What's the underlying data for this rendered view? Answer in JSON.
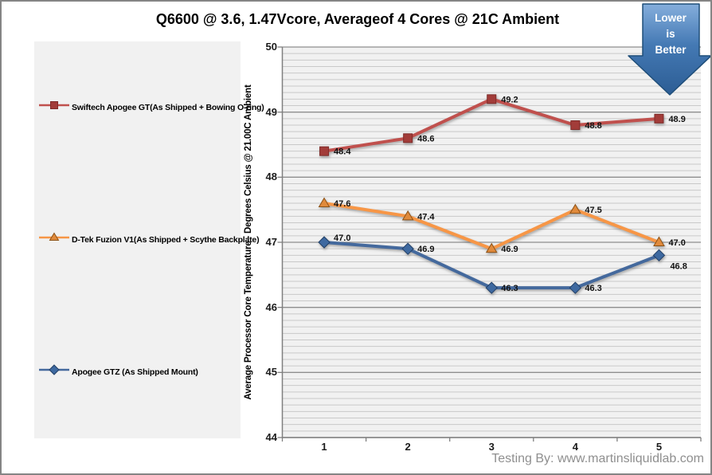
{
  "title": "Q6600 @ 3.6, 1.47Vcore, Averageof 4 Cores @ 21C Ambient",
  "arrow_badge": {
    "lines": [
      "Lower",
      "is",
      "Better"
    ]
  },
  "watermark": "Testing By: www.martinsliquidlab.com",
  "chart_data": {
    "type": "line",
    "title": "Q6600 @ 3.6, 1.47Vcore, Averageof 4 Cores @ 21C Ambient",
    "x_categories": [
      "1",
      "2",
      "3",
      "4",
      "5"
    ],
    "series": [
      {
        "name": "Swiftech Apogee GT(As Shipped + Bowing O-ring)",
        "marker": "square",
        "line_color": "#C0504D",
        "marker_fill": "#A23C39",
        "marker_stroke": "#7E2B28",
        "values": [
          48.4,
          48.6,
          49.2,
          48.8,
          48.9
        ]
      },
      {
        "name": "D-Tek Fuzion V1(As Shipped + Scythe Backplate)",
        "marker": "triangle",
        "line_color": "#F79646",
        "marker_fill": "#E08A3C",
        "marker_stroke": "#8C5216",
        "values": [
          47.6,
          47.4,
          46.9,
          47.5,
          47.0
        ]
      },
      {
        "name": "Apogee GTZ (As Shipped Mount)",
        "marker": "diamond",
        "line_color": "#44699D",
        "marker_fill": "#3E69A0",
        "marker_stroke": "#213F66",
        "values": [
          47.0,
          46.9,
          46.3,
          46.3,
          46.8
        ]
      }
    ],
    "ylabel": "Average Processor Core Temperature - Degrees Celsius @ 21.00C Ambient",
    "xlabel": "",
    "ylim": [
      44,
      50
    ],
    "y_major_ticks": [
      "50",
      "49",
      "48",
      "47",
      "46",
      "45",
      "44"
    ],
    "y_minor_step": 0.1,
    "data_labels": true,
    "data_label_decimals": 1,
    "legend_position": "left",
    "grid": "horizontal-minor"
  },
  "colors": {
    "plot_bg": "#F1F1F1",
    "legend_bg": "#F1F1F1",
    "minor_grid": "#C9C9C9",
    "major_grid": "#8E8E8E",
    "axis": "#7F7F7F",
    "outer_border": "#858585",
    "watermark_text": "#8F8F8F",
    "arrow_fill_top": "#85AEDC",
    "arrow_fill_bottom": "#2C5D94",
    "arrow_border": "#1F4E79"
  }
}
